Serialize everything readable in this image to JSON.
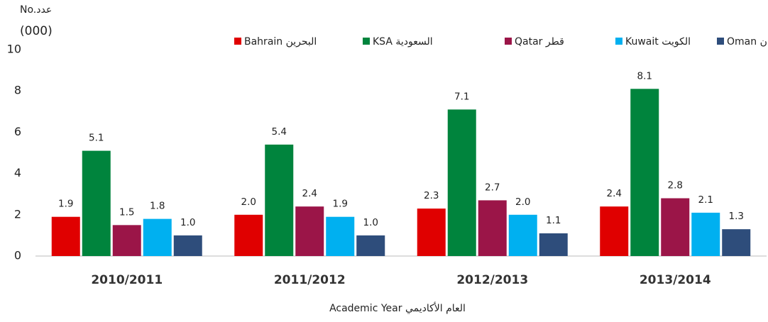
{
  "chart_data": {
    "type": "bar",
    "y_label_line1": "No.عدد",
    "y_label_line2": "(000)",
    "x_label": "Academic Year العام الأكاديمي",
    "categories": [
      "2010/2011",
      "2011/2012",
      "2012/2013",
      "2013/2014"
    ],
    "series": [
      {
        "name": "Bahrain البحرين",
        "color": "#e00000",
        "values": [
          1.9,
          2.0,
          2.3,
          2.4
        ],
        "value_labels": [
          "1.9",
          "2.0",
          "2.3",
          "2.4"
        ]
      },
      {
        "name": "KSA السعودية",
        "color": "#00843d",
        "values": [
          5.1,
          5.4,
          7.1,
          8.1
        ],
        "value_labels": [
          "5.1",
          "5.4",
          "7.1",
          "8.1"
        ]
      },
      {
        "name": "Qatar قطر",
        "color": "#9b1548",
        "values": [
          1.5,
          2.4,
          2.7,
          2.8
        ],
        "value_labels": [
          "1.5",
          "2.4",
          "2.7",
          "2.8"
        ]
      },
      {
        "name": "Kuwait الكويت",
        "color": "#00b0f0",
        "values": [
          1.8,
          1.9,
          2.0,
          2.1
        ],
        "value_labels": [
          "1.8",
          "1.9",
          "2.0",
          "2.1"
        ]
      },
      {
        "name": "Oman عمان",
        "color": "#2e4d7b",
        "values": [
          1.0,
          1.0,
          1.1,
          1.3
        ],
        "value_labels": [
          "1.0",
          "1.0",
          "1.1",
          "1.3"
        ]
      }
    ],
    "ylim": [
      0,
      10
    ],
    "yticks": [
      0,
      2,
      4,
      6,
      8,
      10
    ],
    "grid": false,
    "legend": "top"
  }
}
